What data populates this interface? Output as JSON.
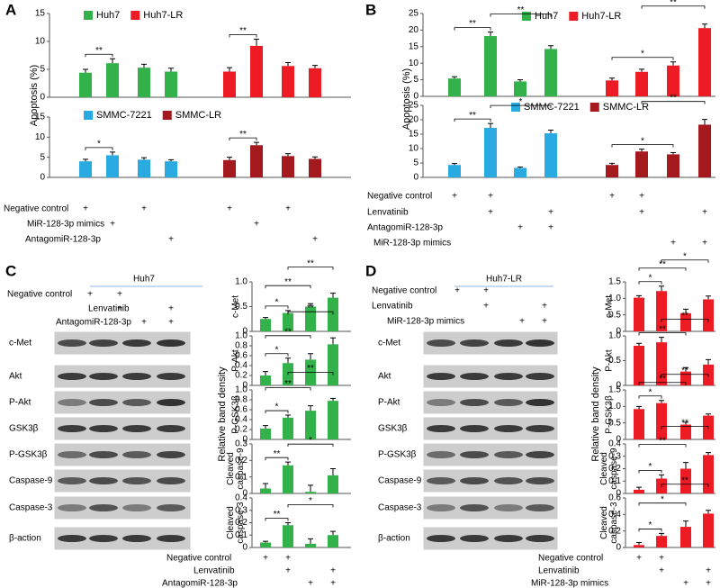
{
  "chart_data": [
    {
      "type": "bar",
      "series": [
        {
          "name": "Huh7",
          "color": "#33b24b",
          "values": [
            4.4,
            6.1,
            5.3,
            4.6
          ],
          "errors": [
            0.6,
            0.8,
            0.6,
            0.6
          ]
        },
        {
          "name": "Huh7-LR",
          "color": "#ed1c24",
          "values": [
            4.6,
            9.2,
            5.6,
            5.2
          ],
          "errors": [
            0.7,
            1.2,
            0.6,
            0.5
          ]
        }
      ],
      "ylim": [
        0,
        15
      ],
      "yticks": [
        0,
        5,
        10,
        15
      ],
      "significance": [
        {
          "label": "**",
          "pair": [
            0,
            1
          ]
        },
        {
          "label": "**",
          "pair": [
            4,
            5
          ]
        }
      ]
    },
    {
      "type": "bar",
      "series": [
        {
          "name": "SMMC-7221",
          "color": "#29abe2",
          "values": [
            4.0,
            5.5,
            4.4,
            4.0
          ],
          "errors": [
            0.5,
            0.8,
            0.5,
            0.4
          ]
        },
        {
          "name": "SMMC-LR",
          "color": "#a3191e",
          "values": [
            4.3,
            8.0,
            5.3,
            4.6
          ],
          "errors": [
            0.7,
            0.7,
            0.6,
            0.5
          ]
        }
      ],
      "ylim": [
        0,
        15
      ],
      "yticks": [
        0,
        5,
        10,
        15
      ],
      "significance": [
        {
          "label": "*",
          "pair": [
            0,
            1
          ]
        },
        {
          "label": "**",
          "pair": [
            4,
            5
          ]
        }
      ]
    },
    {
      "type": "bar",
      "series": [
        {
          "name": "Huh7",
          "color": "#33b24b",
          "values": [
            5.4,
            18.2,
            4.5,
            14.3
          ],
          "errors": [
            0.5,
            1.2,
            0.5,
            1.0
          ]
        },
        {
          "name": "Huh7-LR",
          "color": "#ed1c24",
          "values": [
            4.8,
            7.4,
            9.3,
            20.6
          ],
          "errors": [
            0.7,
            0.8,
            1.1,
            1.2
          ]
        }
      ],
      "ylim": [
        0,
        25
      ],
      "yticks": [
        0,
        5,
        10,
        15,
        20,
        25
      ],
      "significance": [
        {
          "label": "**",
          "pair": [
            0,
            1
          ]
        },
        {
          "label": "**",
          "pair": [
            1,
            3
          ]
        },
        {
          "label": "*",
          "pair": [
            4,
            6
          ]
        },
        {
          "label": "**",
          "pair": [
            5,
            7
          ]
        }
      ]
    },
    {
      "type": "bar",
      "series": [
        {
          "name": "SMMC-7221",
          "color": "#29abe2",
          "values": [
            4.3,
            17.2,
            3.3,
            15.3
          ],
          "errors": [
            0.5,
            1.5,
            0.3,
            1.1
          ]
        },
        {
          "name": "SMMC-LR",
          "color": "#a3191e",
          "values": [
            4.3,
            9.0,
            8.0,
            18.3
          ],
          "errors": [
            0.6,
            0.8,
            0.6,
            1.8
          ]
        }
      ],
      "ylim": [
        0,
        25
      ],
      "yticks": [
        0,
        5,
        10,
        15,
        20,
        25
      ],
      "significance": [
        {
          "label": "**",
          "pair": [
            0,
            1
          ]
        },
        {
          "label": "*",
          "pair": [
            1,
            3
          ]
        },
        {
          "label": "*",
          "pair": [
            4,
            6
          ]
        },
        {
          "label": "**",
          "pair": [
            5,
            7
          ]
        }
      ]
    },
    {
      "type": "bar",
      "ylabel": [
        "c-Met"
      ],
      "color": "#33b24b",
      "values": [
        0.25,
        0.37,
        0.5,
        0.68
      ],
      "errors": [
        0.03,
        0.05,
        0.06,
        0.09
      ],
      "ylim": [
        0,
        1
      ],
      "yticks": [
        0,
        0.5,
        {
          "value": 1,
          "label": "1.0"
        }
      ],
      "significance": [
        {
          "label": "*",
          "pair": [
            0,
            1
          ]
        },
        {
          "label": "**",
          "pair": [
            0,
            2
          ]
        },
        {
          "label": "**",
          "pair": [
            1,
            3
          ]
        }
      ]
    },
    {
      "type": "bar",
      "ylabel": [
        "P-Akt"
      ],
      "color": "#33b24b",
      "values": [
        0.2,
        0.45,
        0.52,
        0.83
      ],
      "errors": [
        0.08,
        0.1,
        0.12,
        0.13
      ],
      "ylim": [
        0,
        1
      ],
      "yticks": [
        0,
        0.2,
        0.4,
        0.6,
        0.8,
        {
          "value": 1,
          "label": "1.0"
        }
      ],
      "significance": [
        {
          "label": "*",
          "pair": [
            0,
            1
          ]
        },
        {
          "label": "**",
          "pair": [
            0,
            2
          ]
        },
        {
          "label": "**",
          "pair": [
            1,
            3
          ]
        }
      ]
    },
    {
      "type": "bar",
      "ylabel": [
        "P-GSK3β"
      ],
      "color": "#33b24b",
      "values": [
        0.22,
        0.44,
        0.58,
        0.78
      ],
      "errors": [
        0.06,
        0.05,
        0.1,
        0.05
      ],
      "ylim": [
        0,
        1
      ],
      "yticks": [
        0,
        0.2,
        0.4,
        0.6,
        0.8,
        {
          "value": 1,
          "label": "1.0"
        }
      ],
      "significance": [
        {
          "label": "*",
          "pair": [
            0,
            1
          ]
        },
        {
          "label": "**",
          "pair": [
            0,
            2
          ]
        },
        {
          "label": "**",
          "pair": [
            1,
            3
          ]
        }
      ]
    },
    {
      "type": "bar",
      "ylabel": [
        "Cleaved",
        "caspase-9"
      ],
      "color": "#33b24b",
      "values": [
        0.03,
        0.17,
        0.01,
        0.11
      ],
      "errors": [
        0.03,
        0.02,
        0.04,
        0.04
      ],
      "ylim": [
        0,
        0.3
      ],
      "yticks": [
        0,
        0.1,
        0.2,
        0.3
      ],
      "significance": [
        {
          "label": "**",
          "pair": [
            0,
            1
          ]
        },
        {
          "label": "*",
          "pair": [
            1,
            3
          ]
        }
      ]
    },
    {
      "type": "bar",
      "ylabel": [
        "Cleaved",
        "caspase-3"
      ],
      "color": "#33b24b",
      "values": [
        0.04,
        0.18,
        0.03,
        0.1
      ],
      "errors": [
        0.01,
        0.02,
        0.04,
        0.03
      ],
      "ylim": [
        0,
        0.4
      ],
      "yticks": [
        0,
        0.1,
        0.2,
        0.3,
        0.4
      ],
      "significance": [
        {
          "label": "**",
          "pair": [
            0,
            1
          ]
        },
        {
          "label": "*",
          "pair": [
            1,
            3
          ]
        }
      ]
    },
    {
      "type": "bar",
      "ylabel": [
        "c-Met"
      ],
      "color": "#ed1c24",
      "values": [
        1.02,
        1.22,
        0.55,
        0.97
      ],
      "errors": [
        0.06,
        0.15,
        0.12,
        0.1
      ],
      "ylim": [
        0,
        1.5
      ],
      "yticks": [
        0,
        0.5,
        {
          "value": 1,
          "label": "1.0"
        },
        1.5
      ],
      "significance": [
        {
          "label": "*",
          "pair": [
            0,
            1
          ]
        },
        {
          "label": "**",
          "pair": [
            0,
            2
          ]
        },
        {
          "label": "*",
          "pair": [
            1,
            3
          ]
        }
      ]
    },
    {
      "type": "bar",
      "ylabel": [
        "P-Akt"
      ],
      "color": "#ed1c24",
      "values": [
        0.8,
        0.87,
        0.28,
        0.42
      ],
      "errors": [
        0.05,
        0.1,
        0.08,
        0.1
      ],
      "ylim": [
        0,
        1
      ],
      "yticks": [
        0,
        0.5,
        {
          "value": 1,
          "label": "1.0"
        }
      ],
      "significance": [
        {
          "label": "**",
          "pair": [
            0,
            2
          ]
        },
        {
          "label": "**",
          "pair": [
            1,
            3
          ]
        }
      ]
    },
    {
      "type": "bar",
      "ylabel": [
        "P-GSK3β"
      ],
      "color": "#ed1c24",
      "values": [
        0.92,
        1.1,
        0.45,
        0.72
      ],
      "errors": [
        0.08,
        0.08,
        0.07,
        0.05
      ],
      "ylim": [
        0,
        1.5
      ],
      "yticks": [
        0,
        0.5,
        {
          "value": 1,
          "label": "1.0"
        },
        1.5
      ],
      "significance": [
        {
          "label": "*",
          "pair": [
            0,
            1
          ]
        },
        {
          "label": "**",
          "pair": [
            0,
            2
          ]
        },
        {
          "label": "**",
          "pair": [
            1,
            3
          ]
        }
      ]
    },
    {
      "type": "bar",
      "ylabel": [
        "Cleaved",
        "caspase-9"
      ],
      "color": "#ed1c24",
      "values": [
        0.03,
        0.12,
        0.2,
        0.31
      ],
      "errors": [
        0.02,
        0.03,
        0.05,
        0.02
      ],
      "ylim": [
        0,
        0.4
      ],
      "yticks": [
        0,
        0.1,
        0.2,
        0.3,
        0.4
      ],
      "significance": [
        {
          "label": "*",
          "pair": [
            0,
            1
          ]
        },
        {
          "label": "**",
          "pair": [
            0,
            2
          ]
        },
        {
          "label": "**",
          "pair": [
            1,
            3
          ]
        }
      ]
    },
    {
      "type": "bar",
      "ylabel": [
        "Cleaved",
        "caspase-3"
      ],
      "color": "#ed1c24",
      "values": [
        0.03,
        0.14,
        0.25,
        0.41
      ],
      "errors": [
        0.03,
        0.03,
        0.07,
        0.04
      ],
      "ylim": [
        0,
        0.6
      ],
      "yticks": [
        0,
        0.2,
        0.4,
        0.6
      ],
      "significance": [
        {
          "label": "*",
          "pair": [
            0,
            1
          ]
        },
        {
          "label": "*",
          "pair": [
            0,
            2
          ]
        },
        {
          "label": "**",
          "pair": [
            1,
            3
          ]
        }
      ]
    }
  ],
  "panels": [
    {
      "label": "A",
      "ylabel": "Apoptosis (%)",
      "treatments": [
        {
          "name": "Negative control",
          "marks": [
            "+",
            null,
            "+",
            null,
            "+",
            null,
            "+",
            null
          ]
        },
        {
          "name": "MiR-128-3p mimics",
          "marks": [
            null,
            "+",
            null,
            null,
            null,
            "+",
            null,
            null
          ]
        },
        {
          "name": "AntagomiR-128-3p",
          "marks": [
            null,
            null,
            null,
            "+",
            null,
            null,
            null,
            "+"
          ]
        }
      ]
    },
    {
      "label": "B",
      "ylabel": "Apoptosis (%)",
      "treatments": [
        {
          "name": "Negative control",
          "marks": [
            "+",
            "+",
            null,
            null,
            "+",
            "+",
            null,
            null
          ]
        },
        {
          "name": "Lenvatinib",
          "marks": [
            null,
            "+",
            null,
            "+",
            null,
            "+",
            null,
            "+"
          ]
        },
        {
          "name": "AntagomiR-128-3p",
          "marks": [
            null,
            null,
            "+",
            "+",
            null,
            null,
            null,
            null
          ]
        },
        {
          "name": "MiR-128-3p mimics",
          "marks": [
            null,
            null,
            null,
            null,
            null,
            null,
            "+",
            "+"
          ]
        }
      ]
    },
    {
      "label": "C",
      "blot_title": "Huh7",
      "ylabel": "Relative band density",
      "blot_rows": [
        "c-Met",
        "Akt",
        "P-Akt",
        "GSK3β",
        "P-GSK3β",
        "Caspase-9",
        "Caspase-3",
        "β-action"
      ],
      "blot_treatments": [
        {
          "name": "Negative control",
          "marks": [
            "+",
            "+",
            null,
            null
          ]
        },
        {
          "name": "Lenvatinib",
          "marks": [
            null,
            "+",
            null,
            "+"
          ]
        },
        {
          "name": "AntagomiR-128-3p",
          "marks": [
            null,
            null,
            "+",
            "+"
          ]
        }
      ],
      "chart_treatments": [
        {
          "name": "Negative control",
          "marks": [
            "+",
            "+",
            null,
            null
          ]
        },
        {
          "name": "Lenvatinib",
          "marks": [
            null,
            "+",
            null,
            "+"
          ]
        },
        {
          "name": "AntagomiR-128-3p",
          "marks": [
            null,
            null,
            "+",
            "+"
          ]
        }
      ]
    },
    {
      "label": "D",
      "blot_title": "Huh7-LR",
      "ylabel": "Relative band density",
      "blot_rows": [
        "c-Met",
        "Akt",
        "P-Akt",
        "GSK3β",
        "P-GSK3β",
        "Caspase-9",
        "Caspase-3",
        "β-action"
      ],
      "blot_treatments": [
        {
          "name": "Negative control",
          "marks": [
            "+",
            "+",
            null,
            null
          ]
        },
        {
          "name": "Lenvatinib",
          "marks": [
            null,
            "+",
            null,
            "+"
          ]
        },
        {
          "name": "MiR-128-3p mimics",
          "marks": [
            null,
            null,
            "+",
            "+"
          ]
        }
      ],
      "chart_treatments": [
        {
          "name": "Negative control",
          "marks": [
            "+",
            "+",
            null,
            null
          ]
        },
        {
          "name": "Lenvatinib",
          "marks": [
            null,
            "+",
            null,
            "+"
          ]
        },
        {
          "name": "MiR-128-3p mimics",
          "marks": [
            null,
            null,
            "+",
            "+"
          ]
        }
      ]
    }
  ]
}
